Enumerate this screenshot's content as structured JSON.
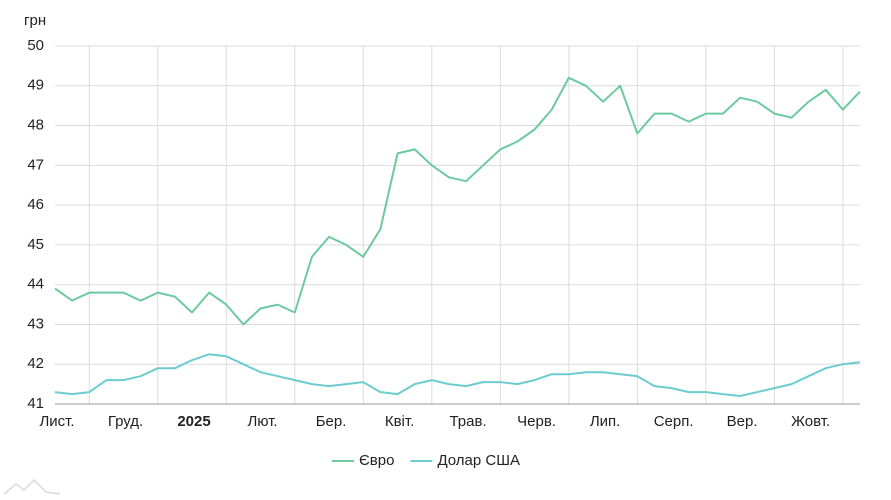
{
  "chart_data": {
    "type": "line",
    "y_label": "грн",
    "categories": [
      "Лист.",
      null,
      null,
      null,
      "Груд.",
      null,
      null,
      null,
      "2025",
      null,
      null,
      null,
      "Лют.",
      null,
      null,
      null,
      "Бер.",
      null,
      null,
      null,
      "Квіт.",
      null,
      null,
      null,
      "Трав.",
      null,
      null,
      null,
      "Черв.",
      null,
      null,
      null,
      "Лип.",
      null,
      null,
      null,
      "Серп.",
      null,
      null,
      null,
      "Вер.",
      null,
      null,
      null,
      "Жовт.",
      null,
      null,
      null
    ],
    "series": [
      {
        "name": "Євро",
        "color": "#6cc9a0",
        "values": [
          43.9,
          43.6,
          43.8,
          43.8,
          43.8,
          43.6,
          43.8,
          43.7,
          43.3,
          43.8,
          43.5,
          43.0,
          43.4,
          43.5,
          43.3,
          44.7,
          45.2,
          45.0,
          44.7,
          45.4,
          47.3,
          47.4,
          47.0,
          46.7,
          46.6,
          47.0,
          47.4,
          47.6,
          47.9,
          48.4,
          49.2,
          49.0,
          48.6,
          49.0,
          47.8,
          48.3,
          48.3,
          48.1,
          48.3,
          48.3,
          48.7,
          48.6,
          48.3,
          48.2,
          48.6,
          48.9,
          48.4,
          48.85
        ]
      },
      {
        "name": "Долар США",
        "color": "#6dccd0",
        "values": [
          41.3,
          41.25,
          41.3,
          41.6,
          41.6,
          41.7,
          41.9,
          41.9,
          42.1,
          42.25,
          42.2,
          42.0,
          41.8,
          41.7,
          41.6,
          41.5,
          41.45,
          41.5,
          41.55,
          41.3,
          41.25,
          41.5,
          41.6,
          41.5,
          41.45,
          41.55,
          41.55,
          41.5,
          41.6,
          41.75,
          41.75,
          41.8,
          41.8,
          41.75,
          41.7,
          41.45,
          41.4,
          41.3,
          41.3,
          41.25,
          41.2,
          41.3,
          41.4,
          41.5,
          41.7,
          41.9,
          42.0,
          42.05
        ]
      }
    ],
    "ylim": [
      41,
      50
    ],
    "yticks": [
      41,
      42,
      43,
      44,
      45,
      46,
      47,
      48,
      49,
      50
    ],
    "grid": true
  }
}
